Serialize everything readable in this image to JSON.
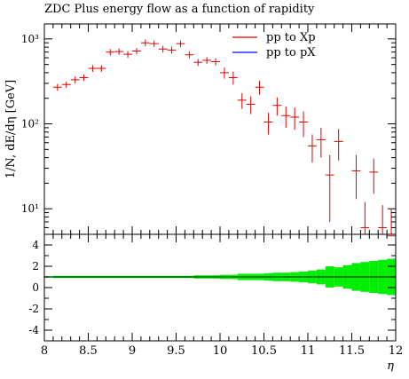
{
  "title": "ZDC Plus energy flow as a function of rapidity",
  "ylabel": "1/N, dE/dη [GeV]",
  "xlabel": "η",
  "chart_data": {
    "type": "scatter",
    "title": "ZDC Plus energy flow as a function of rapidity",
    "xlabel": "η",
    "ylabel": "1/N, dE/dη [GeV]",
    "xlim": [
      8,
      12
    ],
    "ylim": [
      5,
      1500
    ],
    "yscale": "log",
    "ratio_ylim": [
      -5,
      5
    ],
    "legend_position": "top-right",
    "x_ticks": [
      "8",
      "8.5",
      "9",
      "9.5",
      "10",
      "10.5",
      "11",
      "11.5",
      "12"
    ],
    "y_ticks": [
      "10¹",
      "10²",
      "10³"
    ],
    "ratio_ticks": [
      "4",
      "2",
      "0",
      "-2",
      "-4"
    ],
    "series": [
      {
        "name": "pp to Xp",
        "color": "#e00000",
        "x": [
          8.15,
          8.25,
          8.35,
          8.45,
          8.55,
          8.65,
          8.75,
          8.85,
          8.95,
          9.05,
          9.15,
          9.25,
          9.35,
          9.45,
          9.55,
          9.65,
          9.75,
          9.85,
          9.95,
          10.05,
          10.15,
          10.25,
          10.35,
          10.45,
          10.55,
          10.65,
          10.75,
          10.85,
          10.95,
          11.05,
          11.15,
          11.25,
          11.35,
          11.45,
          11.55,
          11.65,
          11.75,
          11.85,
          11.95
        ],
        "y": [
          270,
          290,
          330,
          350,
          450,
          450,
          700,
          710,
          660,
          720,
          900,
          880,
          760,
          740,
          880,
          650,
          530,
          560,
          540,
          400,
          350,
          190,
          170,
          270,
          105,
          165,
          125,
          120,
          105,
          55,
          65,
          25,
          62,
          0,
          28,
          6,
          27,
          6,
          4.8
        ],
        "y_err_low": [
          25,
          25,
          30,
          30,
          40,
          40,
          60,
          60,
          60,
          60,
          80,
          80,
          70,
          70,
          80,
          60,
          50,
          50,
          50,
          60,
          60,
          40,
          40,
          50,
          30,
          40,
          35,
          35,
          35,
          20,
          25,
          18,
          25,
          0,
          15,
          5,
          12,
          5,
          4
        ],
        "y_err_high": [
          25,
          25,
          30,
          30,
          40,
          40,
          60,
          60,
          60,
          60,
          80,
          80,
          70,
          70,
          80,
          60,
          50,
          50,
          50,
          60,
          60,
          40,
          40,
          50,
          30,
          40,
          35,
          35,
          35,
          20,
          25,
          18,
          25,
          0,
          15,
          6,
          12,
          5,
          5
        ]
      },
      {
        "name": "pp to pX",
        "color": "#0000ff",
        "x": [],
        "y": []
      }
    ],
    "ratio_band_halfwidth": [
      0.1,
      0.1,
      0.1,
      0.1,
      0.1,
      0.1,
      0.1,
      0.1,
      0.1,
      0.1,
      0.1,
      0.1,
      0.1,
      0.1,
      0.1,
      0.1,
      0.15,
      0.15,
      0.15,
      0.2,
      0.2,
      0.3,
      0.3,
      0.3,
      0.35,
      0.4,
      0.4,
      0.45,
      0.5,
      0.6,
      0.7,
      1.0,
      0.9,
      1.1,
      1.3,
      1.4,
      1.5,
      1.6,
      1.7
    ],
    "band_color": "#00ee00",
    "ratio_line_color": "#006400"
  }
}
